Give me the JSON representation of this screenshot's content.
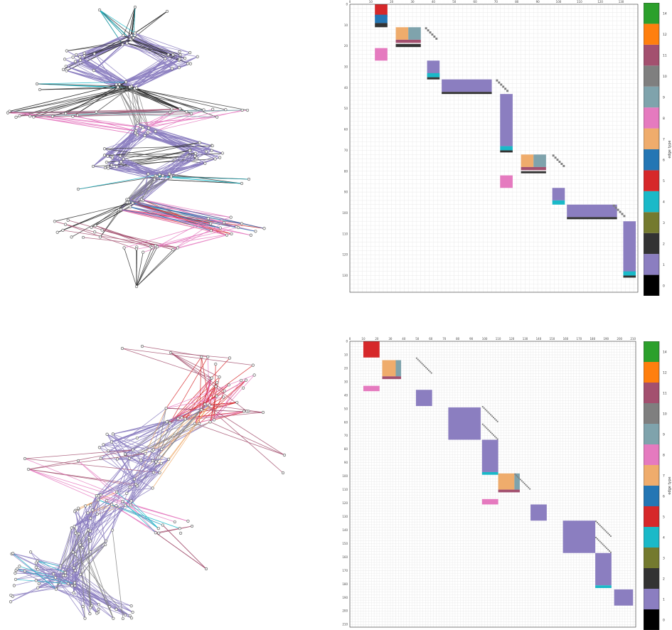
{
  "colorbar": {
    "label": "edge type",
    "ticks": [
      "0",
      "1",
      "2",
      "3",
      "4",
      "5",
      "6",
      "7",
      "8",
      "9",
      "10",
      "11",
      "12",
      "14"
    ],
    "colors": [
      "#000000",
      "#8b7ec0",
      "#333333",
      "#747a2f",
      "#1ab9c8",
      "#d6282a",
      "#2476b4",
      "#efac6c",
      "#e57abf",
      "#7fa3ac",
      "#7f7f7f",
      "#a3506f",
      "#ff7f0e",
      "#2ca02c"
    ]
  },
  "matrix_top": {
    "x_ticks": [
      "0",
      "10",
      "20",
      "30",
      "40",
      "50",
      "60",
      "70",
      "80",
      "90",
      "100",
      "110",
      "120",
      "130"
    ],
    "y_ticks": [
      "0",
      "10",
      "20",
      "30",
      "40",
      "50",
      "60",
      "70",
      "80",
      "90",
      "100",
      "110",
      "120",
      "130"
    ]
  },
  "matrix_bottom": {
    "x_ticks": [
      "0",
      "10",
      "20",
      "30",
      "40",
      "50",
      "60",
      "70",
      "80",
      "90",
      "100",
      "110",
      "120",
      "130",
      "140",
      "150",
      "160",
      "170",
      "180",
      "190",
      "200",
      "210"
    ],
    "y_ticks": [
      "0",
      "10",
      "20",
      "30",
      "40",
      "50",
      "60",
      "70",
      "80",
      "90",
      "100",
      "110",
      "120",
      "130",
      "140",
      "150",
      "160",
      "170",
      "180",
      "190",
      "200",
      "210"
    ]
  },
  "palette": {
    "purple": "#8b7ec0",
    "dark": "#333333",
    "cyan": "#1ab9c8",
    "red": "#d6282a",
    "blue": "#2476b4",
    "orange": "#efac6c",
    "pink": "#e57abf",
    "teal": "#7fa3ac",
    "gray": "#7f7f7f",
    "maroon": "#a3506f"
  }
}
